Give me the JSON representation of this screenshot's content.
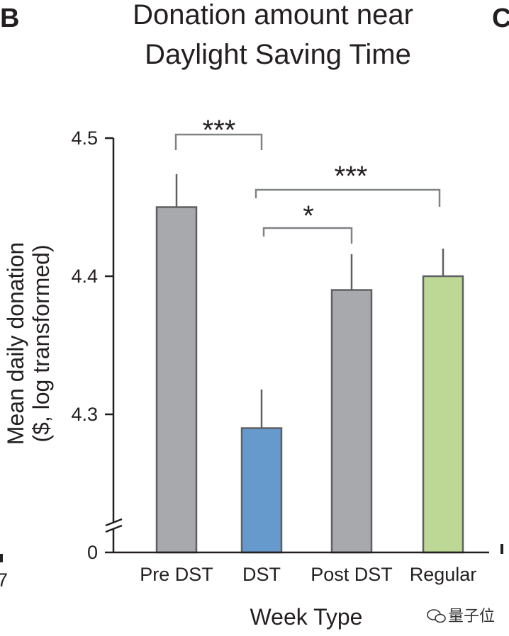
{
  "panel_label": "B",
  "next_panel_label": "C",
  "edge_fragment": "7",
  "watermark": "量子位",
  "chart_data": {
    "type": "bar",
    "title_lines": [
      "Donation amount near",
      "Daylight Saving Time"
    ],
    "xlabel": "Week Type",
    "ylabel_lines": [
      "Mean daily donation",
      "($, log transformed)"
    ],
    "categories": [
      "Pre DST",
      "DST",
      "Post DST",
      "Regular"
    ],
    "values": [
      4.45,
      4.29,
      4.39,
      4.4
    ],
    "error_upper": [
      4.474,
      4.318,
      4.416,
      4.42
    ],
    "colors": [
      "#a7a9ac",
      "#6699cc",
      "#a7a9ac",
      "#bdd794"
    ],
    "ylim": [
      4.2,
      4.5
    ],
    "yticks": [
      {
        "value": 4.5,
        "label": "4.5"
      },
      {
        "value": 4.4,
        "label": "4.4"
      },
      {
        "value": 4.3,
        "label": "4.3"
      }
    ],
    "axis_break": {
      "label": "0"
    },
    "significance": [
      {
        "from": 0,
        "to": 1,
        "label": "***"
      },
      {
        "from": 1,
        "to": 3,
        "label": "***"
      },
      {
        "from": 1,
        "to": 2,
        "label": "*"
      }
    ],
    "grid": false,
    "legend": "none"
  }
}
